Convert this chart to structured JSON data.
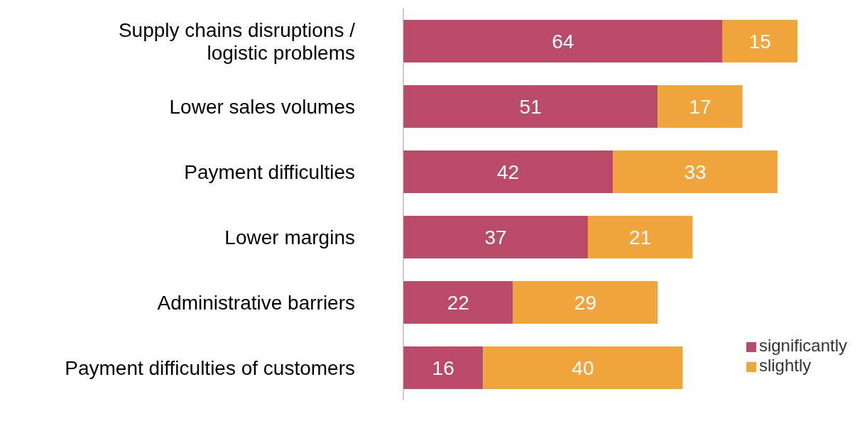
{
  "chart_data": {
    "type": "bar",
    "orientation": "horizontal",
    "stacked": true,
    "data_labels": true,
    "legend": "bottom right",
    "grid": false,
    "categories": [
      "Supply chains disruptions / logistic problems",
      "Lower sales volumes",
      "Payment difficulties",
      "Lower margins",
      "Administrative barriers",
      "Payment difficulties of customers"
    ],
    "series": [
      {
        "name": "significantly",
        "color": "#b94a68",
        "values": [
          64,
          51,
          42,
          37,
          22,
          16
        ]
      },
      {
        "name": "slightly",
        "color": "#f0a53c",
        "values": [
          15,
          17,
          33,
          21,
          29,
          40
        ]
      }
    ]
  }
}
